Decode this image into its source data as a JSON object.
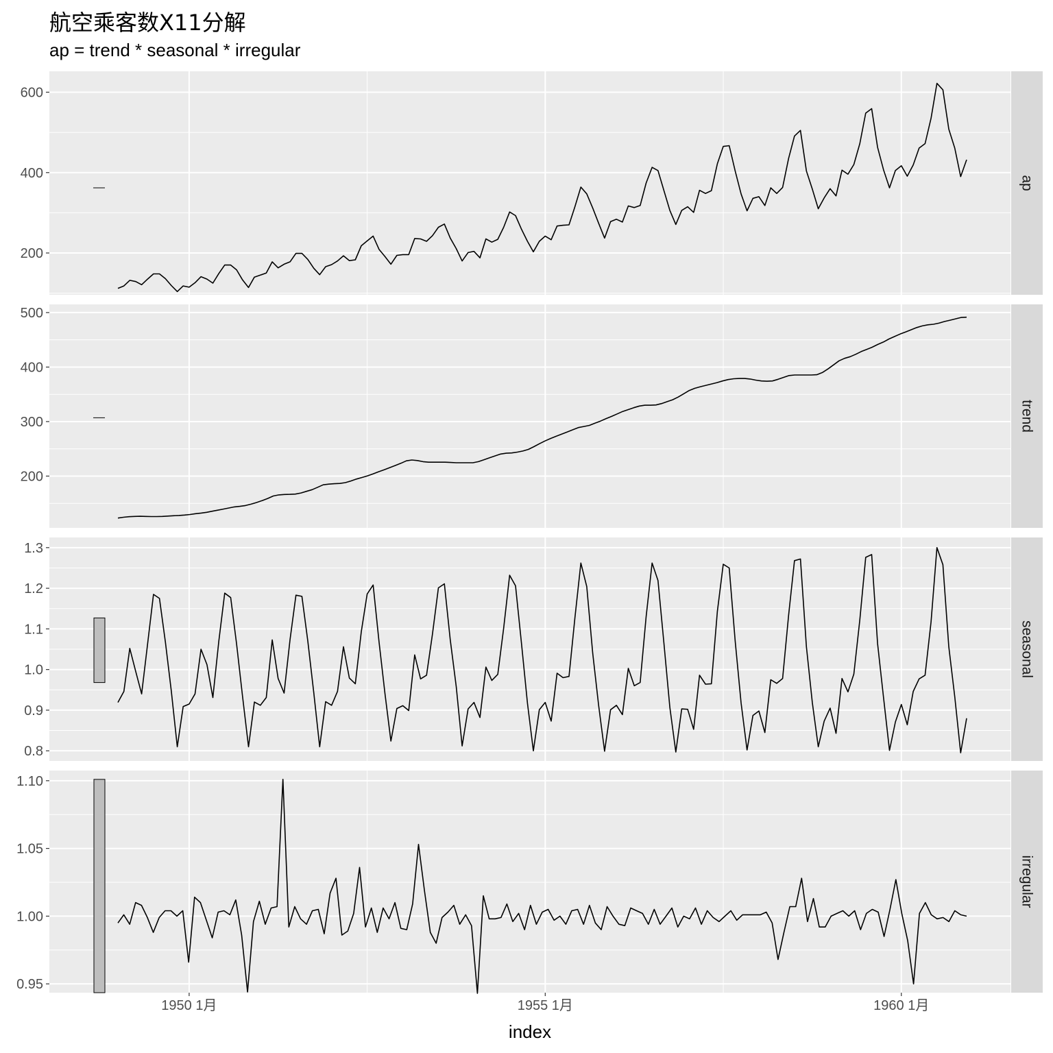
{
  "title": "航空乘客数X11分解",
  "subtitle": "ap = trend * seasonal * irregular",
  "chart_data": {
    "type": "line",
    "facet": "vertical",
    "x": {
      "label": "index",
      "start": 1949.0,
      "end": 1960.9167,
      "ticks": [
        1950,
        1955,
        1960
      ],
      "tick_labels": [
        "1950 1月",
        "1955 1月",
        "1960 1月"
      ]
    },
    "panels": [
      {
        "name": "ap",
        "strip": "ap",
        "ylim": [
          96,
          652
        ],
        "yticks": [
          200,
          400,
          600
        ],
        "ytick_labels": [
          "200",
          "400",
          "600"
        ],
        "range_bar": {
          "low": 362,
          "high": 362
        },
        "values": [
          112,
          118,
          132,
          129,
          121,
          135,
          148,
          148,
          136,
          119,
          104,
          118,
          115,
          126,
          141,
          135,
          125,
          149,
          170,
          170,
          158,
          133,
          114,
          140,
          145,
          150,
          178,
          163,
          172,
          178,
          199,
          199,
          184,
          162,
          146,
          166,
          171,
          180,
          193,
          181,
          183,
          218,
          230,
          242,
          209,
          191,
          172,
          194,
          196,
          196,
          236,
          235,
          229,
          243,
          264,
          272,
          237,
          211,
          180,
          201,
          204,
          188,
          235,
          227,
          234,
          264,
          302,
          293,
          259,
          229,
          203,
          229,
          242,
          233,
          267,
          269,
          270,
          315,
          364,
          347,
          312,
          274,
          237,
          278,
          284,
          277,
          317,
          313,
          318,
          374,
          413,
          405,
          355,
          306,
          271,
          306,
          315,
          301,
          356,
          348,
          355,
          422,
          465,
          467,
          404,
          347,
          305,
          336,
          340,
          318,
          362,
          348,
          363,
          435,
          491,
          505,
          404,
          359,
          310,
          337,
          360,
          342,
          406,
          396,
          420,
          472,
          548,
          559,
          463,
          407,
          362,
          405,
          417,
          391,
          419,
          461,
          472,
          535,
          622,
          606,
          508,
          461,
          390,
          432
        ]
      },
      {
        "name": "trend",
        "strip": "trend",
        "ylim": [
          105,
          515
        ],
        "yticks": [
          200,
          300,
          400,
          500
        ],
        "ytick_labels": [
          "200",
          "300",
          "400",
          "500"
        ],
        "range_bar": {
          "low": 307,
          "high": 307
        },
        "values": [
          123.0,
          124.5,
          125.5,
          126.0,
          126.3,
          126.0,
          125.8,
          125.8,
          126.0,
          126.6,
          127.2,
          127.8,
          128.5,
          129.5,
          131.0,
          132.2,
          133.5,
          135.5,
          137.5,
          139.5,
          141.5,
          143.5,
          144.5,
          146.0,
          148.5,
          151.5,
          155.0,
          159.0,
          163.5,
          165.5,
          166.3,
          166.5,
          167.0,
          169.0,
          172.0,
          175.0,
          179.5,
          184.0,
          185.3,
          186.0,
          186.5,
          188.0,
          191.0,
          194.5,
          197.5,
          200.5,
          204.0,
          208.0,
          211.5,
          215.5,
          219.5,
          223.5,
          228.0,
          229.5,
          228.5,
          226.5,
          225.5,
          225.5,
          225.5,
          225.5,
          225.0,
          224.5,
          224.5,
          224.5,
          224.5,
          226.5,
          230.0,
          233.5,
          237.0,
          240.5,
          242.0,
          242.5,
          244.0,
          246.0,
          249.0,
          254.0,
          259.5,
          264.5,
          269.0,
          273.0,
          277.0,
          281.0,
          285.0,
          289.0,
          291.0,
          293.0,
          297.0,
          301.0,
          305.5,
          309.5,
          314.0,
          318.5,
          322.0,
          325.5,
          328.5,
          330.0,
          330.0,
          330.5,
          333.0,
          336.5,
          340.0,
          345.0,
          351.0,
          357.0,
          361.0,
          364.0,
          366.5,
          369.0,
          371.5,
          374.5,
          377.0,
          378.5,
          379.0,
          379.0,
          378.0,
          376.0,
          374.5,
          374.0,
          374.5,
          377.5,
          381.0,
          384.5,
          385.5,
          385.5,
          385.5,
          385.5,
          386.0,
          390.0,
          396.5,
          404.0,
          411.5,
          416.0,
          419.0,
          423.5,
          428.5,
          432.5,
          436.5,
          441.5,
          446.0,
          451.5,
          456.0,
          460.5,
          464.5,
          468.5,
          472.5,
          475.5,
          477.5,
          478.5,
          480.5,
          483.5,
          486.0,
          488.5,
          491.0,
          491.5
        ]
      },
      {
        "name": "seasonal",
        "strip": "seasonal",
        "ylim": [
          0.775,
          1.325
        ],
        "yticks": [
          0.8,
          0.9,
          1.0,
          1.1,
          1.2,
          1.3
        ],
        "ytick_labels": [
          "0.8",
          "0.9",
          "1.0",
          "1.1",
          "1.2",
          "1.3"
        ],
        "range_bar": {
          "low": 0.968,
          "high": 1.127
        },
        "values": [
          0.919,
          0.946,
          1.052,
          0.995,
          0.94,
          1.063,
          1.185,
          1.175,
          1.067,
          0.947,
          0.81,
          0.909,
          0.915,
          0.94,
          1.05,
          1.012,
          0.931,
          1.07,
          1.188,
          1.177,
          1.063,
          0.934,
          0.81,
          0.92,
          0.912,
          0.931,
          1.073,
          0.978,
          0.942,
          1.074,
          1.183,
          1.18,
          1.07,
          0.943,
          0.81,
          0.921,
          0.912,
          0.946,
          1.056,
          0.979,
          0.965,
          1.093,
          1.186,
          1.208,
          1.068,
          0.94,
          0.824,
          0.904,
          0.911,
          0.899,
          1.036,
          0.977,
          0.986,
          1.087,
          1.201,
          1.211,
          1.073,
          0.958,
          0.812,
          0.903,
          0.919,
          0.882,
          1.006,
          0.973,
          0.988,
          1.102,
          1.232,
          1.206,
          1.064,
          0.917,
          0.8,
          0.901,
          0.919,
          0.873,
          0.991,
          0.98,
          0.983,
          1.127,
          1.262,
          1.204,
          1.04,
          0.912,
          0.799,
          0.901,
          0.912,
          0.889,
          1.003,
          0.96,
          0.968,
          1.13,
          1.262,
          1.219,
          1.064,
          0.907,
          0.797,
          0.903,
          0.902,
          0.853,
          0.986,
          0.964,
          0.965,
          1.143,
          1.259,
          1.25,
          1.07,
          0.918,
          0.802,
          0.887,
          0.898,
          0.845,
          0.975,
          0.966,
          0.978,
          1.133,
          1.268,
          1.272,
          1.056,
          0.919,
          0.81,
          0.873,
          0.905,
          0.843,
          0.978,
          0.945,
          0.989,
          1.122,
          1.276,
          1.283,
          1.064,
          0.931,
          0.801,
          0.871,
          0.914,
          0.864,
          0.946,
          0.977,
          0.986,
          1.117,
          1.3,
          1.258,
          1.056,
          0.933,
          0.795,
          0.88
        ]
      },
      {
        "name": "irregular",
        "strip": "irregular",
        "ylim": [
          0.9435,
          1.1075
        ],
        "yticks": [
          0.95,
          1.0,
          1.05,
          1.1
        ],
        "ytick_labels": [
          "0.95",
          "1.00",
          "1.05",
          "1.10"
        ],
        "range_bar": {
          "low": 0.9435,
          "high": 1.101
        },
        "values": [
          0.995,
          1.001,
          0.994,
          1.01,
          1.008,
          0.999,
          0.988,
          0.999,
          1.004,
          1.004,
          1.0,
          1.004,
          0.966,
          1.014,
          1.01,
          0.997,
          0.984,
          1.003,
          1.004,
          1.001,
          1.012,
          0.986,
          0.944,
          0.996,
          1.011,
          0.994,
          1.006,
          1.007,
          1.101,
          0.992,
          1.007,
          0.998,
          0.994,
          1.004,
          1.005,
          0.987,
          1.017,
          1.028,
          0.986,
          0.989,
          1.002,
          1.036,
          0.992,
          1.006,
          0.988,
          1.006,
          0.998,
          1.01,
          0.991,
          0.99,
          1.009,
          1.053,
          1.019,
          0.988,
          0.98,
          0.999,
          1.003,
          1.008,
          0.994,
          1.001,
          0.993,
          0.943,
          1.015,
          0.998,
          0.998,
          0.999,
          1.009,
          0.996,
          1.002,
          0.99,
          1.008,
          0.994,
          1.003,
          1.005,
          0.997,
          1.0,
          0.994,
          1.004,
          1.005,
          0.994,
          1.008,
          0.995,
          0.99,
          1.007,
          1.0,
          0.994,
          0.993,
          1.006,
          1.004,
          1.002,
          0.994,
          1.005,
          0.994,
          1.0,
          1.006,
          0.992,
          1.0,
          0.998,
          1.006,
          0.994,
          1.004,
          0.999,
          0.996,
          1.0,
          1.004,
          0.997,
          1.001,
          1.001,
          1.001,
          1.001,
          1.003,
          0.995,
          0.968,
          0.988,
          1.007,
          1.007,
          1.028,
          0.996,
          1.013,
          0.992,
          0.992,
          1.0,
          1.002,
          1.004,
          1.0,
          1.004,
          0.99,
          1.002,
          1.005,
          1.003,
          0.985,
          1.005,
          1.027,
          1.002,
          0.982,
          0.95,
          1.002,
          1.01,
          1.001,
          0.998,
          0.999,
          0.996,
          1.004,
          1.001,
          1.0
        ]
      }
    ]
  }
}
